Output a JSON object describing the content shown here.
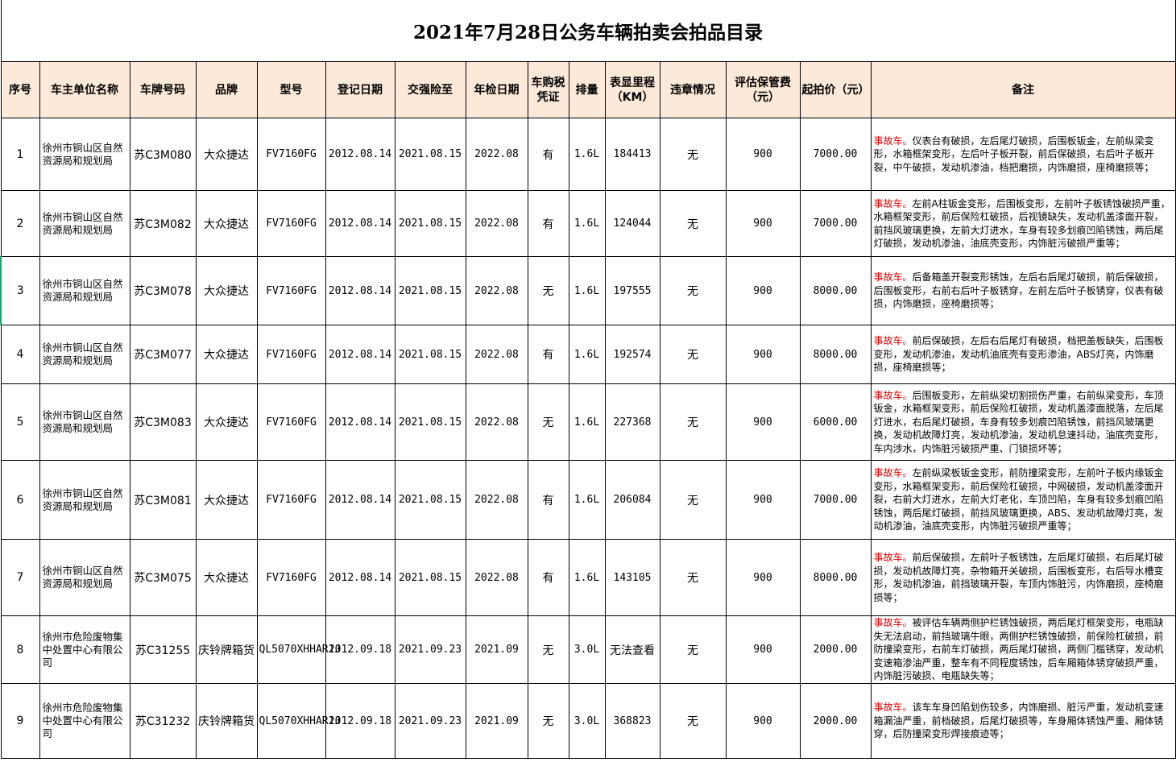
{
  "title": "2021年7月28日公务车辆拍卖会拍品目录",
  "colors": {
    "header_bg": "#FDE9D9",
    "accident_tag": "#E00000"
  },
  "headers": [
    "序号",
    "车主单位名称",
    "车牌号码",
    "品牌",
    "型号",
    "登记日期",
    "交强险至",
    "年检日期",
    "车购税凭证",
    "排量",
    "表显里程（KM）",
    "违章情况",
    "评估保管费（元）",
    "起拍价（元）",
    "备注"
  ],
  "rows": [
    {
      "no": "1",
      "owner": "徐州市铜山区自然资源局和规划局",
      "plate": "苏C3M080",
      "brand": "大众捷达",
      "model": "FV7160FG",
      "reg": "2012.08.14",
      "insurance": "2021.08.15",
      "inspection": "2022.08",
      "tax": "有",
      "displacement": "1.6L",
      "mileage": "184413",
      "violation": "无",
      "fee": "900",
      "price": "7000.00",
      "tag": "事故车。",
      "remark": "仪表台有破损，左后尾灯破损，后围板钣金，左前纵梁变形，水箱框架变形，左后叶子板开裂，前后保破损，右后叶子板开裂，中午破损，发动机渗油，档把磨损，内饰磨损，座椅磨损等；"
    },
    {
      "no": "2",
      "owner": "徐州市铜山区自然资源局和规划局",
      "plate": "苏C3M082",
      "brand": "大众捷达",
      "model": "FV7160FG",
      "reg": "2012.08.14",
      "insurance": "2021.08.15",
      "inspection": "2022.08",
      "tax": "有",
      "displacement": "1.6L",
      "mileage": "124044",
      "violation": "无",
      "fee": "900",
      "price": "7000.00",
      "tag": "事故车。",
      "remark": "左前A柱钣金变形，后围板变形，左前叶子板锈蚀破损严重，水箱框架变形，前后保险杠破损，后视镜缺失，发动机盖漆面开裂，前挡风玻璃更换，左前大灯进水，车身有较多划痕凹陷锈蚀，两后尾灯破损，发动机渗油，油底壳变形，内饰脏污破损严重等；"
    },
    {
      "no": "3",
      "owner": "徐州市铜山区自然资源局和规划局",
      "plate": "苏C3M078",
      "brand": "大众捷达",
      "model": "FV7160FG",
      "reg": "2012.08.14",
      "insurance": "2021.08.15",
      "inspection": "2022.08",
      "tax": "无",
      "displacement": "1.6L",
      "mileage": "197555",
      "violation": "无",
      "fee": "900",
      "price": "8000.00",
      "tag": "事故车。",
      "remark": "后备箱盖开裂变形锈蚀，左后右后尾灯破损，前后保破损，后围板变形，右前右后叶子板锈穿，左前左后叶子板锈穿，仪表有破损，内饰磨损，座椅磨损等；"
    },
    {
      "no": "4",
      "owner": "徐州市铜山区自然资源局和规划局",
      "plate": "苏C3M077",
      "brand": "大众捷达",
      "model": "FV7160FG",
      "reg": "2012.08.14",
      "insurance": "2021.08.15",
      "inspection": "2022.08",
      "tax": "有",
      "displacement": "1.6L",
      "mileage": "192574",
      "violation": "无",
      "fee": "900",
      "price": "8000.00",
      "tag": "事故车。",
      "remark": "前后保破损，左后右后尾灯有破损，档把盖板缺失，后围板变形，发动机渗油，发动机油底壳有变形渗油，ABS灯亮，内饰磨损，座椅磨损等；"
    },
    {
      "no": "5",
      "owner": "徐州市铜山区自然资源局和规划局",
      "plate": "苏C3M083",
      "brand": "大众捷达",
      "model": "FV7160FG",
      "reg": "2012.08.14",
      "insurance": "2021.08.15",
      "inspection": "2022.08",
      "tax": "无",
      "displacement": "1.6L",
      "mileage": "227368",
      "violation": "无",
      "fee": "900",
      "price": "6000.00",
      "tag": "事故车。",
      "remark": "后围板变形，左前纵梁切割损伤严重，右前纵梁变形，车顶钣金，水箱框架变形，前后保险杠破损，发动机盖漆面脱落，左后尾灯进水，右后尾灯破损，车身有较多划痕凹陷锈蚀，前挡风玻璃更换，发动机故障灯亮，发动机渗油，发动机怠速抖动，油底壳变形，车内涉水，内饰脏污破损严重、门锁损坏等；"
    },
    {
      "no": "6",
      "owner": "徐州市铜山区自然资源局和规划局",
      "plate": "苏C3M081",
      "brand": "大众捷达",
      "model": "FV7160FG",
      "reg": "2012.08.14",
      "insurance": "2021.08.15",
      "inspection": "2022.08",
      "tax": "有",
      "displacement": "1.6L",
      "mileage": "206084",
      "violation": "无",
      "fee": "900",
      "price": "7000.00",
      "tag": "事故车。",
      "remark": "左前纵梁板钣金变形，前防撞梁变形，左前叶子板内缘钣金变形，水箱框架变形，前后保险杠破损，中网破损，发动机盖漆面开裂，右前大灯进水，左前大灯老化，车顶凹陷，车身有较多划痕凹陷锈蚀，两后尾灯破损，前挡风玻璃更换，ABS、发动机故障灯亮，发动机渗油，油底壳变形，内饰脏污破损严重等；"
    },
    {
      "no": "7",
      "owner": "徐州市铜山区自然资源局和规划局",
      "plate": "苏C3M075",
      "brand": "大众捷达",
      "model": "FV7160FG",
      "reg": "2012.08.14",
      "insurance": "2021.08.15",
      "inspection": "2022.08",
      "tax": "有",
      "displacement": "1.6L",
      "mileage": "143105",
      "violation": "无",
      "fee": "900",
      "price": "8000.00",
      "tag": "事故车。",
      "remark": "前后保破损，左前叶子板锈蚀，左后尾灯破损，右后尾灯破损，发动机故障灯亮，杂物箱开关破损，后围板变形，右后导水槽变形，发动机渗油，前挡玻璃开裂，车顶内饰脏污，内饰磨损，座椅磨损等；"
    },
    {
      "no": "8",
      "owner": "徐州市危险废物集中处置中心有限公司",
      "plate": "苏C31255",
      "brand": "庆铃牌箱货",
      "model": "QL5070XHHAR1J",
      "reg": "2012.09.18",
      "insurance": "2021.09.23",
      "inspection": "2021.09",
      "tax": "无",
      "displacement": "3.0L",
      "mileage": "无法查看",
      "violation": "无",
      "fee": "900",
      "price": "2000.00",
      "tag": "事故车。",
      "remark": "被评估车辆两侧护栏锈蚀破损，两后尾灯框架变形，电瓶缺失无法启动，前挡玻璃牛眼，两侧护栏锈蚀破损，前保险杠破损，前防撞梁变形，右前车灯破损，两后尾灯破损，两侧门槛锈穿，发动机变速箱渗油严重，整车有不同程度锈蚀，后车厢箱体锈穿破损严重，内饰脏污破损、电瓶缺失等；"
    },
    {
      "no": "9",
      "owner": "徐州市危险废物集中处置中心有限公司",
      "plate": "苏C31232",
      "brand": "庆铃牌箱货",
      "model": "QL5070XHHAR1J",
      "reg": "2012.09.18",
      "insurance": "2021.09.23",
      "inspection": "2021.09",
      "tax": "无",
      "displacement": "3.0L",
      "mileage": "368823",
      "violation": "无",
      "fee": "900",
      "price": "2000.00",
      "tag": "事故车。",
      "remark": "该车车身凹陷划伤较多，内饰磨损、脏污严重，发动机变速箱漏油严重，前档破损，后尾灯破损等，车身厢体锈蚀严重、厢体锈穿，后防撞梁变形焊接痕迹等；"
    }
  ]
}
